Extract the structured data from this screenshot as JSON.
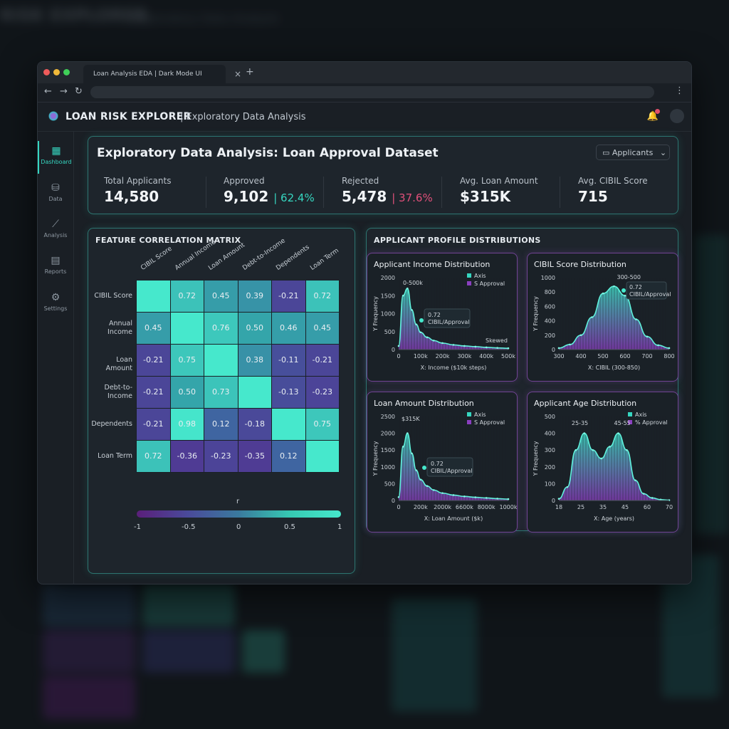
{
  "background": {
    "title": "RISK EXPLORER",
    "subtitle": "Exploratory Data Analysis"
  },
  "browser": {
    "tab_title": "Loan Analysis EDA | Dark Mode UI",
    "tab_close": "×",
    "new_tab": "+",
    "back": "←",
    "forward": "→",
    "reload": "↻",
    "menu": "⋮"
  },
  "app": {
    "brand": "LOAN RISK EXPLORER",
    "section": "| Exploratory Data Analysis"
  },
  "sidebar": {
    "items": [
      {
        "label": "Dashboard",
        "icon": "dashboard-icon",
        "glyph": "▦"
      },
      {
        "label": "Data",
        "icon": "database-icon",
        "glyph": "⛁"
      },
      {
        "label": "Analysis",
        "icon": "line-chart-icon",
        "glyph": "⟋"
      },
      {
        "label": "Reports",
        "icon": "document-icon",
        "glyph": "▤"
      },
      {
        "label": "Settings",
        "icon": "gear-icon",
        "glyph": "⚙"
      }
    ]
  },
  "header": {
    "title": "Exploratory Data Analysis: Loan Approval Dataset",
    "dropdown": "Applicants",
    "dropdown_chevron": "⌄"
  },
  "kpis": [
    {
      "label": "Total Applicants",
      "value": "14,580",
      "pct": ""
    },
    {
      "label": "Approved",
      "value": "9,102",
      "pct": "| 62.4%"
    },
    {
      "label": "Rejected",
      "value": "5,478",
      "pct": "| 37.6%"
    },
    {
      "label": "Avg. Loan Amount",
      "value": "$315K",
      "pct": ""
    },
    {
      "label": "Avg. CIBIL Score",
      "value": "715",
      "pct": ""
    }
  ],
  "colors": {
    "approved": "#36d6c0",
    "rejected": "#e0507a",
    "accent": "#36d6c0",
    "purple": "#8a3fc0"
  },
  "correlation": {
    "title": "FEATURE CORRELATION MATRIX",
    "columns": [
      "CIBIL Score",
      "Annual Income",
      "Loan Amount",
      "Debt-to-Income",
      "Dependents",
      "Loan Term"
    ],
    "rows": [
      "CIBIL Score",
      "Annual Income",
      "Loan Amount",
      "Debt-to-Income",
      "Dependents",
      "Loan Term"
    ],
    "values": [
      [
        "",
        "0.72",
        "0.45",
        "0.39",
        "-0.21",
        "0.72"
      ],
      [
        "0.45",
        "",
        "0.76",
        "0.50",
        "0.46",
        "0.45"
      ],
      [
        "-0.21",
        "0.75",
        "",
        "0.38",
        "-0.11",
        "-0.21"
      ],
      [
        "-0.21",
        "0.50",
        "0.73",
        "",
        "-0.13",
        "-0.23"
      ],
      [
        "-0.21",
        "0.98",
        "0.12",
        "-0.18",
        "",
        "0.75"
      ],
      [
        "0.72",
        "-0.36",
        "-0.23",
        "-0.35",
        "0.12",
        ""
      ]
    ],
    "colorbar_title": "r",
    "colorbar_ticks": [
      "-1",
      "-0.5",
      "0",
      "0.5",
      "1"
    ]
  },
  "distributions_title": "APPLICANT PROFILE DISTRIBUTIONS",
  "chart_data": [
    {
      "type": "area",
      "title": "Applicant Income Distribution",
      "ylabel": "Y Frequency",
      "xlabel": "X: Income ($10k steps)",
      "x_ticks": [
        "0",
        "100k",
        "200k",
        "300k",
        "400k",
        "500k"
      ],
      "y_ticks": [
        "0",
        "500",
        "1000",
        "1500",
        "2000"
      ],
      "ylim": [
        0,
        2000
      ],
      "x": [
        0,
        20,
        40,
        60,
        80,
        100,
        130,
        160,
        200,
        250,
        300,
        350,
        400,
        450,
        500
      ],
      "y": [
        100,
        1500,
        1700,
        1100,
        700,
        480,
        340,
        250,
        180,
        130,
        100,
        80,
        60,
        45,
        35
      ],
      "legend": [
        "Axis",
        "S Approval"
      ],
      "annotations": [
        "0-500k",
        "0.72",
        "CIBIL/Approval",
        "Skewed"
      ]
    },
    {
      "type": "area",
      "title": "CIBIL Score Distribution",
      "ylabel": "Y Frequency",
      "xlabel": "X: CIBIL (300-850)",
      "x_ticks": [
        "300",
        "400",
        "500",
        "600",
        "700",
        "800"
      ],
      "y_ticks": [
        "0",
        "200",
        "400",
        "600",
        "800",
        "1000"
      ],
      "ylim": [
        0,
        1000
      ],
      "x": [
        300,
        350,
        400,
        450,
        500,
        550,
        600,
        650,
        700,
        750,
        800
      ],
      "y": [
        20,
        70,
        200,
        450,
        780,
        880,
        750,
        420,
        180,
        60,
        20
      ],
      "legend": [],
      "annotations": [
        "300-500",
        "0.72",
        "CIBIL/Approval"
      ]
    },
    {
      "type": "area",
      "title": "Loan Amount Distribution",
      "ylabel": "Y Frequency",
      "xlabel": "X: Loan Amount ($k)",
      "x_ticks": [
        "0",
        "200k",
        "2000k",
        "6600k",
        "8000k",
        "1000k"
      ],
      "y_ticks": [
        "0",
        "500",
        "1000",
        "1500",
        "2000",
        "2500"
      ],
      "ylim": [
        0,
        2500
      ],
      "x": [
        0,
        20,
        40,
        60,
        80,
        100,
        130,
        160,
        200,
        250,
        300,
        350,
        400,
        450,
        500
      ],
      "y": [
        100,
        1600,
        2000,
        1400,
        900,
        620,
        430,
        310,
        220,
        160,
        120,
        95,
        75,
        55,
        40
      ],
      "legend": [
        "Axis",
        "S Approval"
      ],
      "annotations": [
        "$315K",
        "0.72",
        "CIBIL/Approval"
      ]
    },
    {
      "type": "area",
      "title": "Applicant Age Distribution",
      "ylabel": "Y Frequency",
      "xlabel": "X: Age (years)",
      "x_ticks": [
        "18",
        "25",
        "35",
        "45",
        "60",
        "70"
      ],
      "y_ticks": [
        "0",
        "100",
        "200",
        "300",
        "400",
        "500"
      ],
      "ylim": [
        0,
        500
      ],
      "x": [
        18,
        22,
        26,
        30,
        34,
        38,
        42,
        46,
        50,
        54,
        58,
        62,
        66,
        70
      ],
      "y": [
        10,
        80,
        300,
        400,
        300,
        250,
        320,
        400,
        300,
        120,
        40,
        15,
        5,
        2
      ],
      "legend": [
        "Axis",
        "% Approval"
      ],
      "annotations": [
        "25-35",
        "45-55"
      ]
    }
  ]
}
